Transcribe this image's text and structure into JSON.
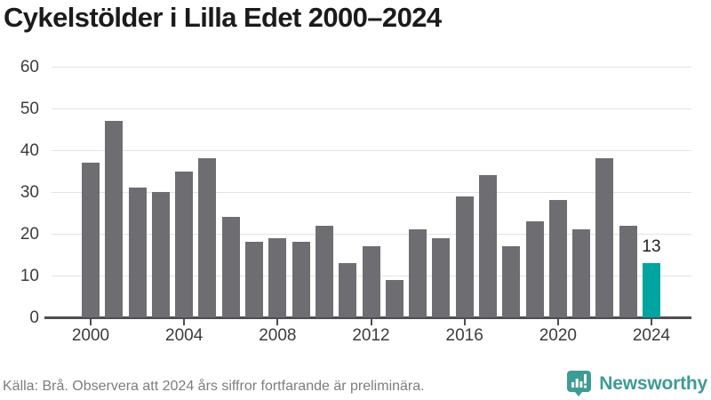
{
  "title": "Cykelstölder i Lilla Edet 2000–2024",
  "footer": {
    "source_note": "Källa: Brå. Observera att 2024 års siffror fortfarande är preliminära.",
    "brand": "Newsworthy"
  },
  "colors": {
    "bar": "#6e6e72",
    "highlight": "#00a59f",
    "brand": "#3d9c95",
    "grid": "#e3e3e3",
    "axis": "#4d4d52",
    "title_text": "#1b1b1b",
    "tick_text": "#3c3c3c",
    "value_label_text": "#1e1e1e",
    "footer_text": "#7d7d7d",
    "background": "#ffffff"
  },
  "chart_data": {
    "type": "bar",
    "title": "Cykelstölder i Lilla Edet 2000–2024",
    "x": [
      2000,
      2001,
      2002,
      2003,
      2004,
      2005,
      2006,
      2007,
      2008,
      2009,
      2010,
      2011,
      2012,
      2013,
      2014,
      2015,
      2016,
      2017,
      2018,
      2019,
      2020,
      2021,
      2022,
      2023,
      2024
    ],
    "values": [
      37,
      47,
      31,
      30,
      35,
      38,
      24,
      18,
      19,
      18,
      22,
      13,
      17,
      9,
      21,
      19,
      29,
      34,
      17,
      23,
      28,
      21,
      38,
      22,
      13
    ],
    "xlabel": "",
    "ylabel": "",
    "ylim": [
      0,
      60
    ],
    "yticks": [
      0,
      10,
      20,
      30,
      40,
      50,
      60
    ],
    "xticks": [
      2000,
      2004,
      2008,
      2012,
      2016,
      2020,
      2024
    ],
    "grid": true,
    "legend": false,
    "highlight": {
      "year": 2024,
      "value_label": "13"
    }
  }
}
